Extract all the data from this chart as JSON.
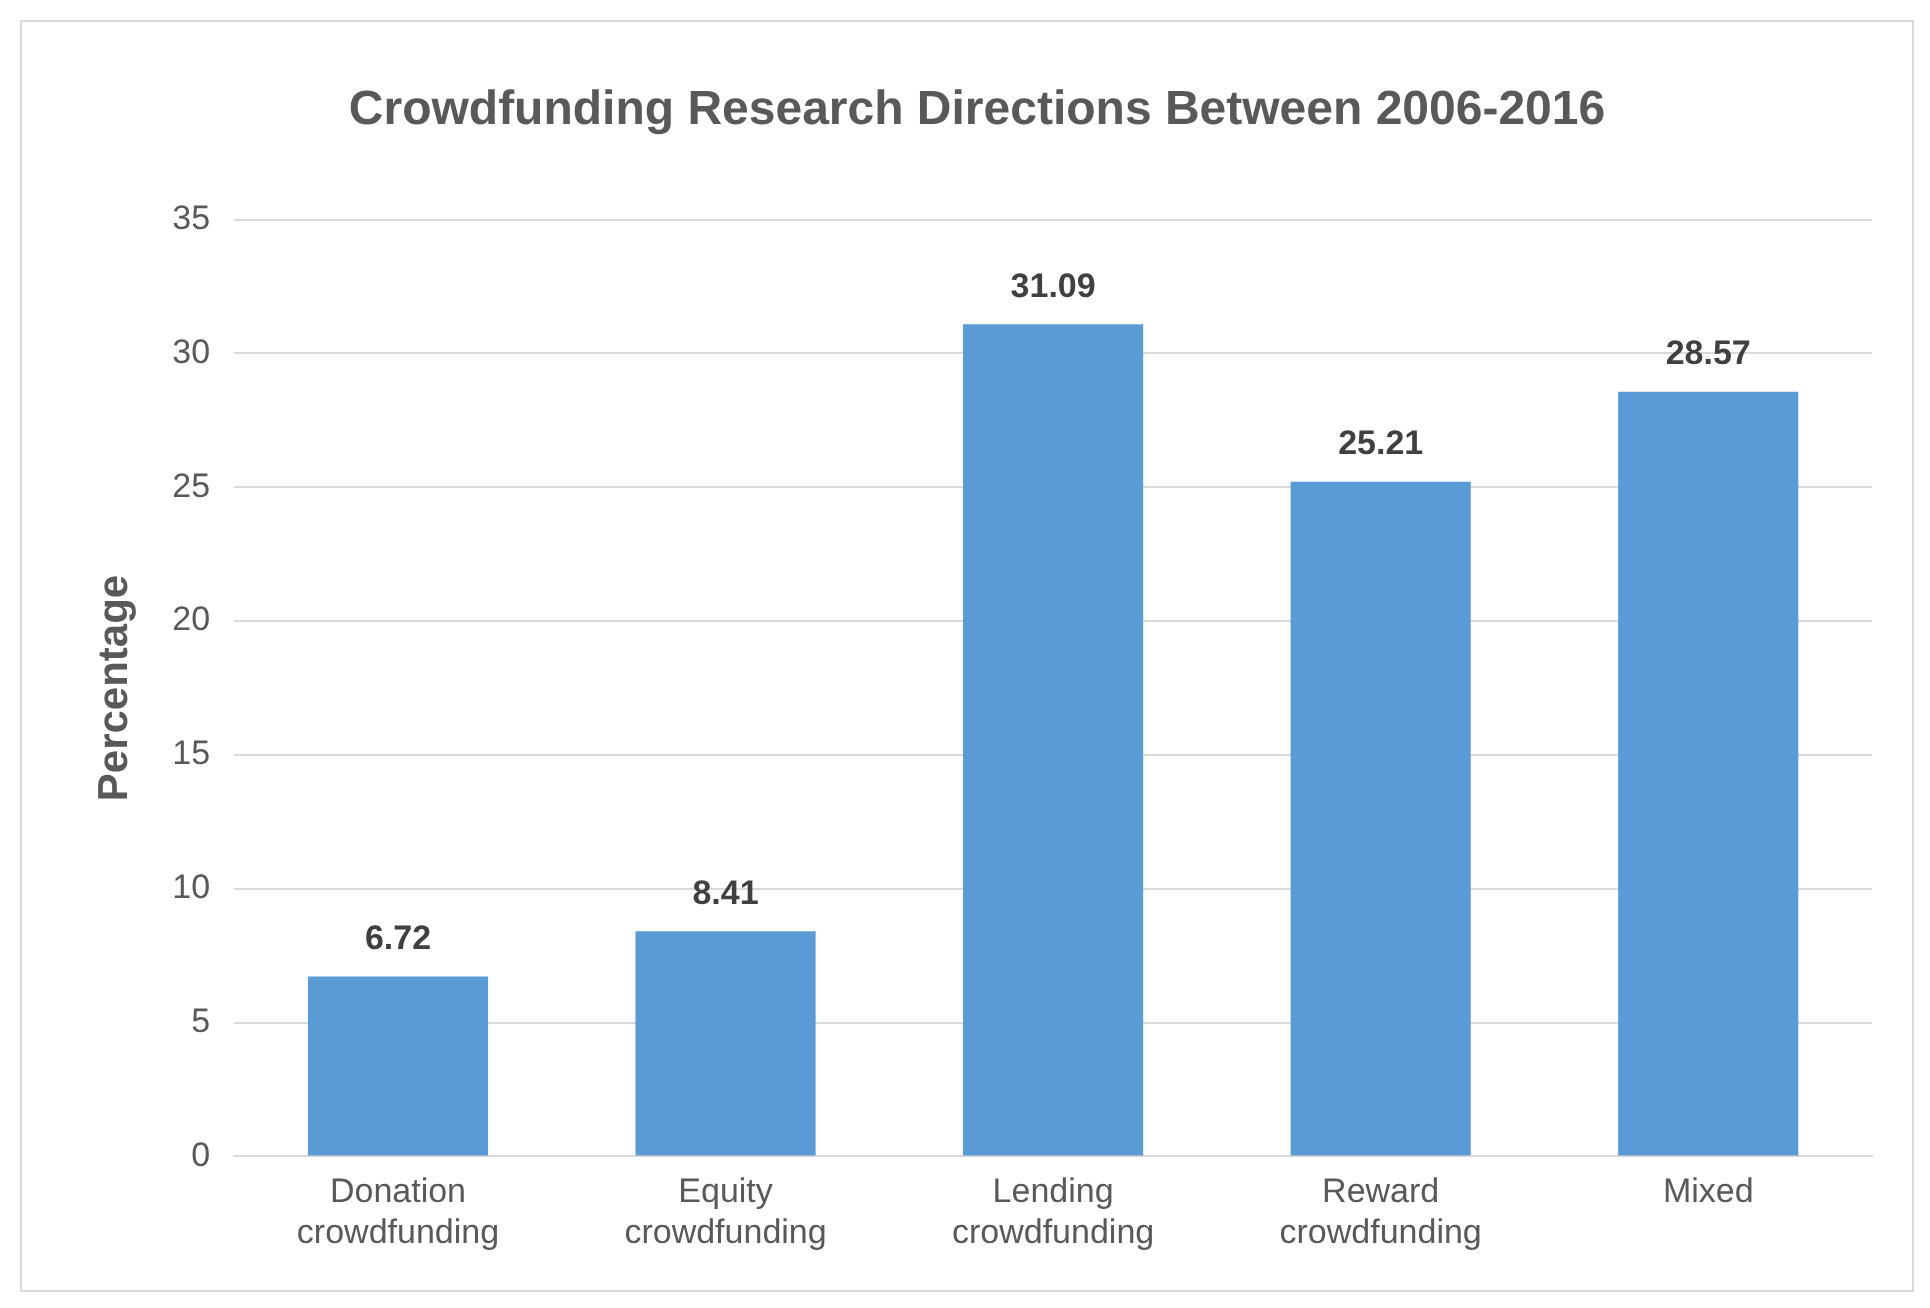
{
  "chart_data": {
    "type": "bar",
    "title": "Crowdfunding Research Directions Between 2006-2016",
    "ylabel": "Percentage",
    "categories": [
      "Donation crowdfunding",
      "Equity crowdfunding",
      "Lending crowdfunding",
      "Reward crowdfunding",
      "Mixed"
    ],
    "values": [
      6.72,
      8.41,
      31.09,
      25.21,
      28.57
    ],
    "color": "#5b9bd5",
    "ylim": [
      0,
      35
    ],
    "yticks": [
      0,
      5,
      10,
      15,
      20,
      25,
      30,
      35
    ],
    "grid": "y",
    "data_labels": true,
    "legend": false
  }
}
